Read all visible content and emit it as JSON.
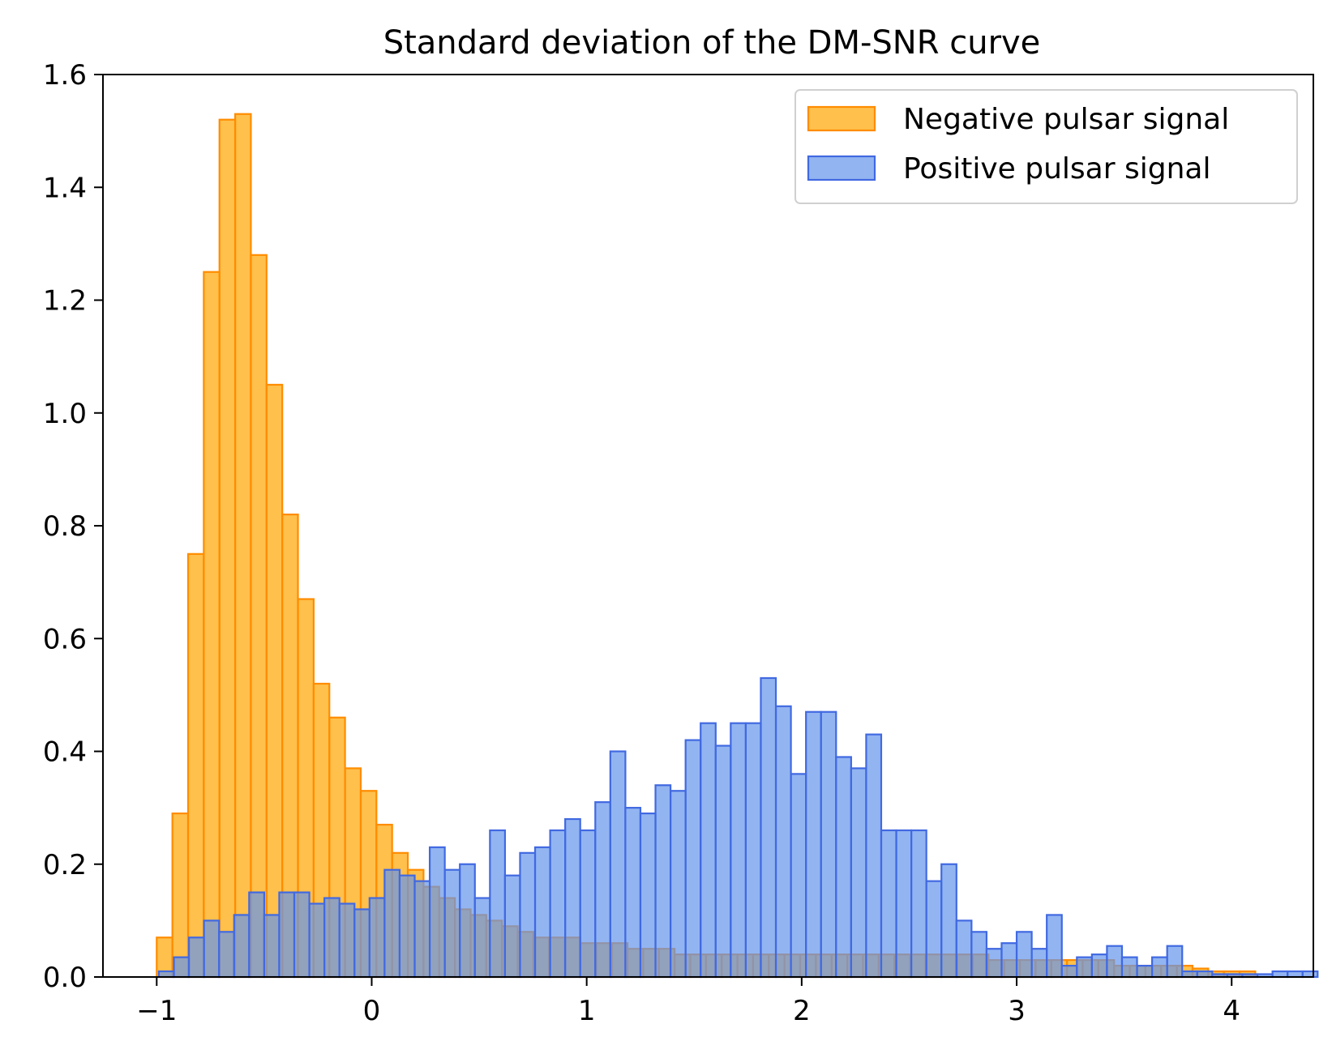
{
  "chart_data": {
    "type": "histogram",
    "title": "Standard deviation of the DM-SNR curve",
    "xlabel": "",
    "ylabel": "",
    "xlim": [
      -1.25,
      4.38
    ],
    "ylim": [
      0,
      1.6
    ],
    "x_ticks": [
      -1,
      0,
      1,
      2,
      3,
      4
    ],
    "x_tick_labels": [
      "−1",
      "0",
      "1",
      "2",
      "3",
      "4"
    ],
    "y_ticks": [
      0.0,
      0.2,
      0.4,
      0.6,
      0.8,
      1.0,
      1.2,
      1.4,
      1.6
    ],
    "y_tick_labels": [
      "0.0",
      "0.2",
      "0.4",
      "0.6",
      "0.8",
      "1.0",
      "1.2",
      "1.4",
      "1.6"
    ],
    "grid": false,
    "legend_position": "top-right",
    "series": [
      {
        "name": "Negative pulsar signal",
        "fill": "#FFA500",
        "fill_opacity": 0.7,
        "edge": "#FF8C00",
        "bin_start": -1.0,
        "bin_width": 0.073,
        "values": [
          0.07,
          0.29,
          0.75,
          1.25,
          1.52,
          1.53,
          1.28,
          1.05,
          0.82,
          0.67,
          0.52,
          0.46,
          0.37,
          0.33,
          0.27,
          0.22,
          0.19,
          0.16,
          0.14,
          0.12,
          0.11,
          0.1,
          0.09,
          0.08,
          0.07,
          0.07,
          0.07,
          0.06,
          0.06,
          0.06,
          0.05,
          0.05,
          0.05,
          0.04,
          0.04,
          0.04,
          0.04,
          0.04,
          0.04,
          0.04,
          0.04,
          0.04,
          0.04,
          0.04,
          0.04,
          0.04,
          0.04,
          0.04,
          0.04,
          0.04,
          0.04,
          0.04,
          0.04,
          0.03,
          0.03,
          0.03,
          0.03,
          0.03,
          0.03,
          0.03,
          0.03,
          0.02,
          0.02,
          0.02,
          0.02,
          0.02,
          0.015,
          0.01,
          0.01,
          0.01
        ]
      },
      {
        "name": "Positive pulsar signal",
        "fill": "#6495ED",
        "fill_opacity": 0.7,
        "edge": "#4169E1",
        "bin_start": -0.99,
        "bin_width": 0.07,
        "values": [
          0.01,
          0.035,
          0.07,
          0.1,
          0.08,
          0.11,
          0.15,
          0.11,
          0.15,
          0.15,
          0.13,
          0.14,
          0.13,
          0.12,
          0.14,
          0.19,
          0.18,
          0.17,
          0.23,
          0.19,
          0.2,
          0.14,
          0.26,
          0.18,
          0.22,
          0.23,
          0.26,
          0.28,
          0.26,
          0.31,
          0.4,
          0.3,
          0.29,
          0.34,
          0.33,
          0.42,
          0.45,
          0.41,
          0.45,
          0.45,
          0.53,
          0.48,
          0.36,
          0.47,
          0.47,
          0.39,
          0.37,
          0.43,
          0.26,
          0.26,
          0.26,
          0.17,
          0.2,
          0.1,
          0.08,
          0.05,
          0.06,
          0.08,
          0.05,
          0.11,
          0.02,
          0.035,
          0.04,
          0.055,
          0.035,
          0.02,
          0.035,
          0.055,
          0.01,
          0.01,
          0.005,
          0.005,
          0.005,
          0.005,
          0.01,
          0.01,
          0.01
        ]
      }
    ]
  }
}
